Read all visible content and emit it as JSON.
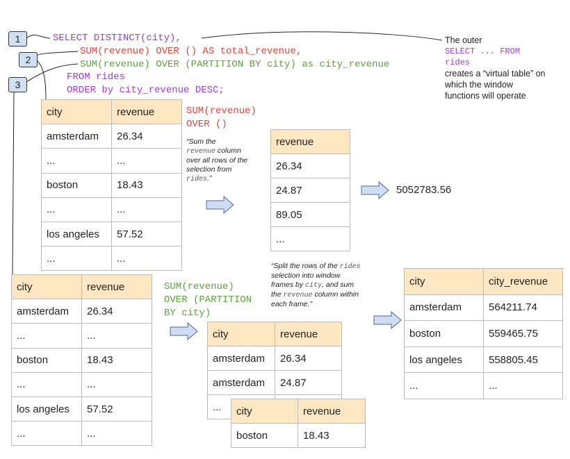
{
  "steps": [
    "1",
    "2",
    "3"
  ],
  "query": [
    "SELECT DISTINCT(city),",
    "SUM(revenue) OVER () AS total_revenue,",
    "SUM(revenue) OVER (PARTITION BY city) as city_revenue",
    "FROM rides",
    "ORDER by city_revenue DESC;"
  ],
  "outer_note": [
    "The outer",
    "SELECT ... FROM",
    "rides",
    "creates a “virtual table” on",
    "which the window",
    "functions will operate"
  ],
  "total_label": [
    "SUM(revenue)",
    "OVER ()"
  ],
  "partition_label": [
    "SUM(revenue)",
    "OVER (PARTITION",
    "BY city)"
  ],
  "notes": [
    [
      [
        {
          "text": "“Sum the"
        }
      ],
      [
        {
          "text": "revenue",
          "code": true
        },
        {
          "text": " column"
        }
      ],
      [
        {
          "text": "over all rows of the"
        }
      ],
      [
        {
          "text": "selection from"
        }
      ],
      [
        {
          "text": "rides",
          "code": true
        },
        {
          "text": ".”"
        }
      ]
    ],
    [
      [
        {
          "text": "“Split the rows of the "
        },
        {
          "text": "rides",
          "code": true
        }
      ],
      [
        {
          "text": "selection into window"
        }
      ],
      [
        {
          "text": "frames by "
        },
        {
          "text": "city",
          "code": true
        },
        {
          "text": ", and sum"
        }
      ],
      [
        {
          "text": "the "
        },
        {
          "text": "revenue",
          "code": true
        },
        {
          "text": " column within"
        }
      ],
      [
        {
          "text": "each frame.”"
        }
      ]
    ]
  ],
  "result": "5052783.56",
  "tables": [
    {
      "headers": [
        "city",
        "revenue"
      ],
      "rows": [
        [
          "amsterdam",
          "26.34"
        ],
        [
          "...",
          "..."
        ],
        [
          "boston",
          "18.43"
        ],
        [
          "...",
          "..."
        ],
        [
          "los angeles",
          "57.52"
        ],
        [
          "...",
          "..."
        ]
      ]
    },
    {
      "headers": [
        "revenue"
      ],
      "rows": [
        [
          "26.34"
        ],
        [
          "24.87"
        ],
        [
          "89.05"
        ],
        [
          "..."
        ]
      ]
    },
    {
      "headers": [
        "city",
        "revenue"
      ],
      "rows": [
        [
          "amsterdam",
          "26.34"
        ],
        [
          "...",
          "..."
        ],
        [
          "boston",
          "18.43"
        ],
        [
          "...",
          "..."
        ],
        [
          "los angeles",
          "57.52"
        ],
        [
          "...",
          "..."
        ]
      ]
    },
    {
      "headers": [
        "city",
        "revenue"
      ],
      "rows": [
        [
          "amsterdam",
          "26.34"
        ],
        [
          "amsterdam",
          "24.87"
        ],
        [
          "..."
        ]
      ]
    },
    {
      "headers": [
        "city",
        "revenue"
      ],
      "rows": [
        [
          "boston",
          "18.43"
        ]
      ]
    },
    {
      "headers": [
        "city",
        "city_revenue"
      ],
      "rows": [
        [
          "amsterdam",
          "564211.74"
        ],
        [
          "boston",
          "559465.75"
        ],
        [
          "los angeles",
          "558805.45"
        ],
        [
          "...",
          "..."
        ]
      ]
    }
  ]
}
